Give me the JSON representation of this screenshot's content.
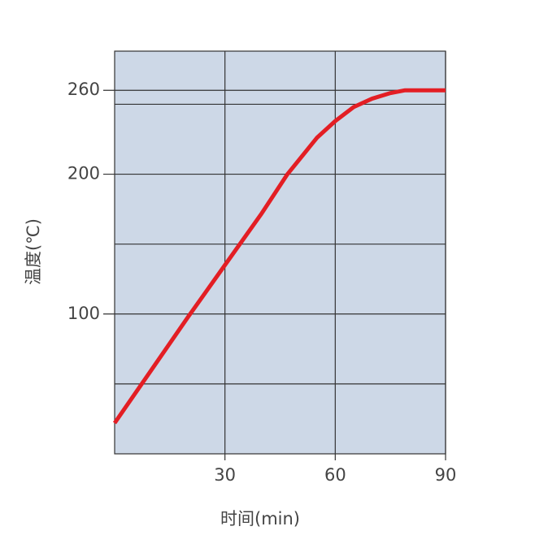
{
  "chart_data": {
    "type": "line",
    "x_label": "时间(min)",
    "y_label": "温度(℃)",
    "x": [
      0,
      10,
      20,
      30,
      40,
      47,
      55,
      60,
      65,
      70,
      75,
      79,
      90
    ],
    "series": [
      {
        "color": "#e31e24",
        "values": [
          22,
          60,
          98,
          135,
          172,
          200,
          226,
          238,
          248,
          254,
          258,
          260,
          260
        ]
      }
    ],
    "xlim": [
      0,
      90
    ],
    "xticks": [
      30,
      60,
      90
    ],
    "ylim": [
      0,
      288
    ],
    "yticks": [
      100,
      200,
      260
    ],
    "minor_yticks": [
      50,
      150,
      250
    ],
    "grid": true,
    "background": "#cdd8e7"
  }
}
